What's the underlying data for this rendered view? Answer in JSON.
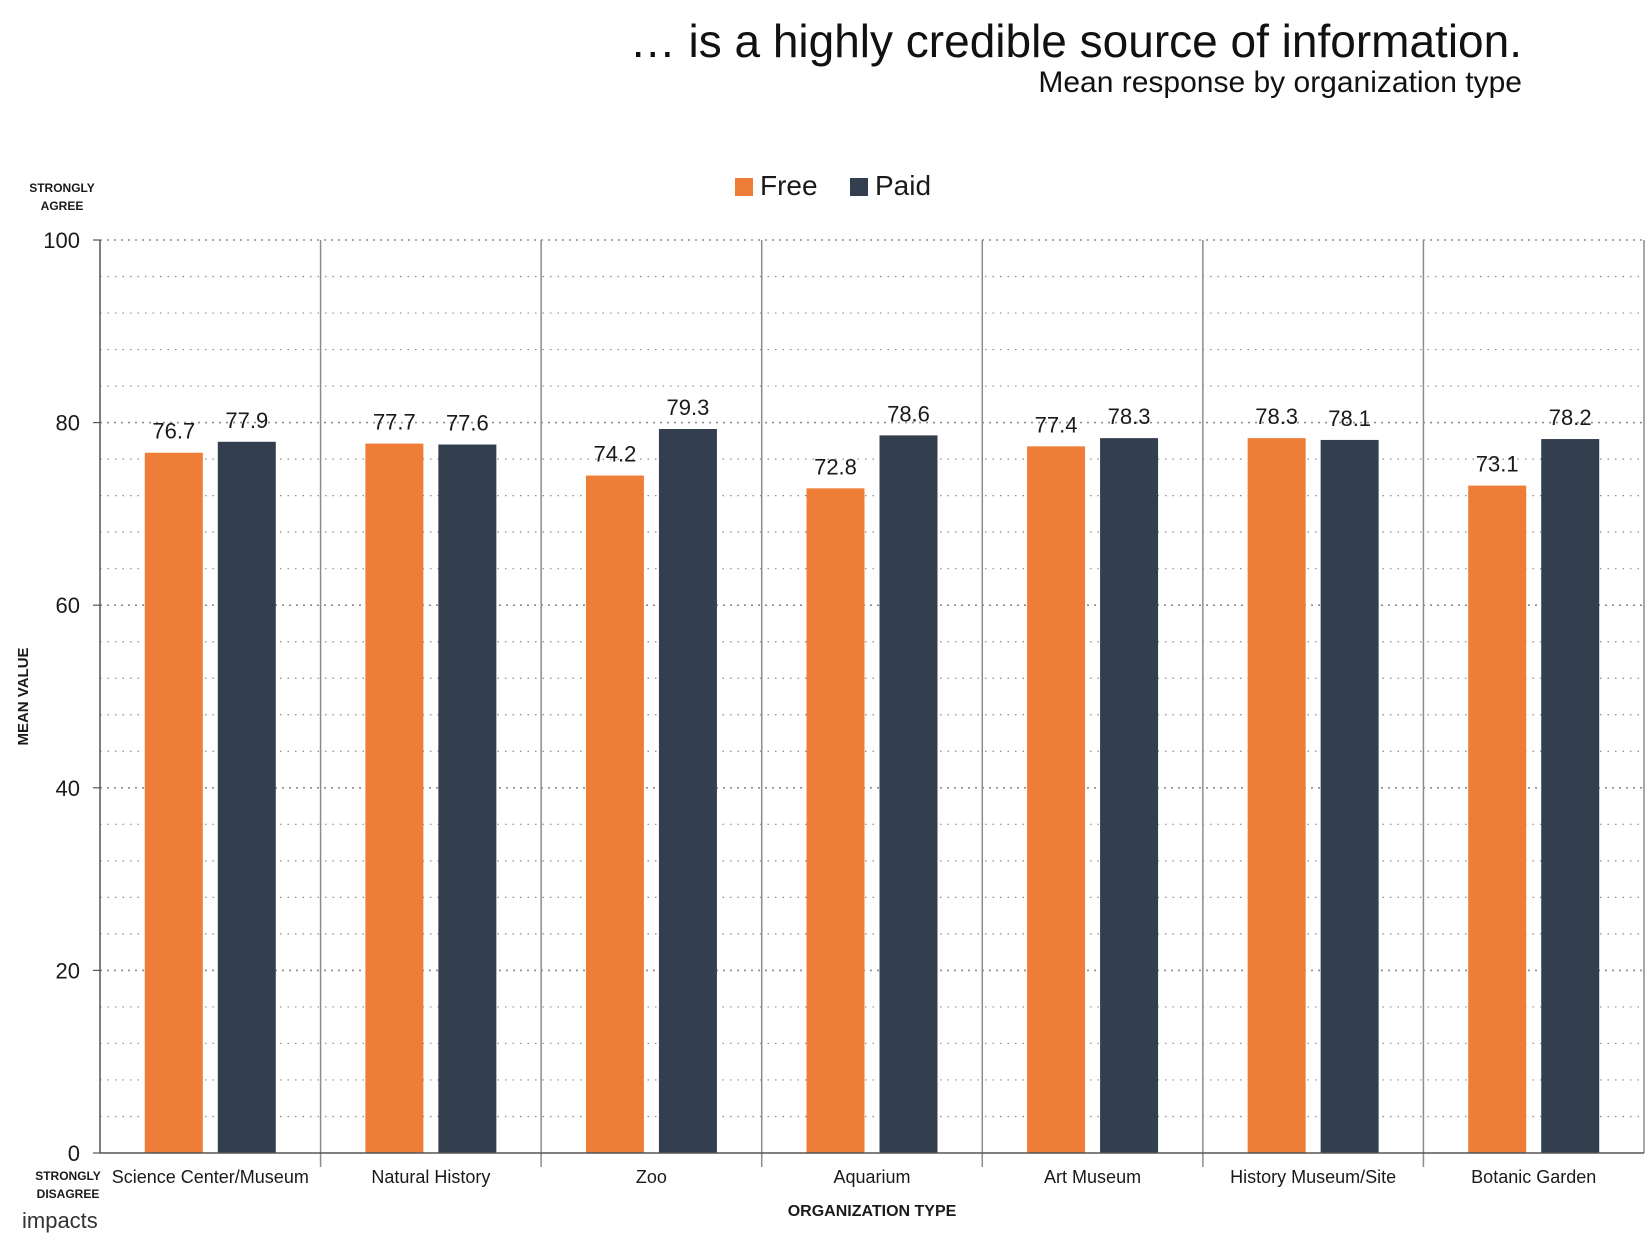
{
  "header": {
    "title": "… is a highly credible source of information.",
    "subtitle": "Mean response by organization type"
  },
  "brand": {
    "name": "impacts"
  },
  "colors": {
    "free": "#ED7D37",
    "paid": "#333F4F",
    "grid": "#8c8c8c",
    "separator": "#8c8c8c",
    "axis": "#555555",
    "text": "#1a1a1a"
  },
  "chart_data": {
    "type": "bar",
    "title": "… is a highly credible source of information.",
    "subtitle": "Mean response by organization type",
    "xlabel": "ORGANIZATION TYPE",
    "ylabel": "MEAN VALUE",
    "y_top_label": [
      "STRONGLY",
      "AGREE"
    ],
    "y_bottom_label": [
      "STRONGLY",
      "DISAGREE"
    ],
    "ylim": [
      0,
      100
    ],
    "yticks": [
      0,
      20,
      40,
      60,
      80,
      100
    ],
    "minor_grid_step": 4,
    "grid": true,
    "legend_position": "top-center",
    "categories": [
      "Science Center/Museum",
      "Natural History",
      "Zoo",
      "Aquarium",
      "Art Museum",
      "History Museum/Site",
      "Botanic Garden"
    ],
    "series": [
      {
        "name": "Free",
        "color": "#ED7D37",
        "values": [
          76.7,
          77.7,
          74.2,
          72.8,
          77.4,
          78.3,
          73.1
        ]
      },
      {
        "name": "Paid",
        "color": "#333F4F",
        "values": [
          77.9,
          77.6,
          79.3,
          78.6,
          78.3,
          78.1,
          78.2
        ]
      }
    ]
  }
}
